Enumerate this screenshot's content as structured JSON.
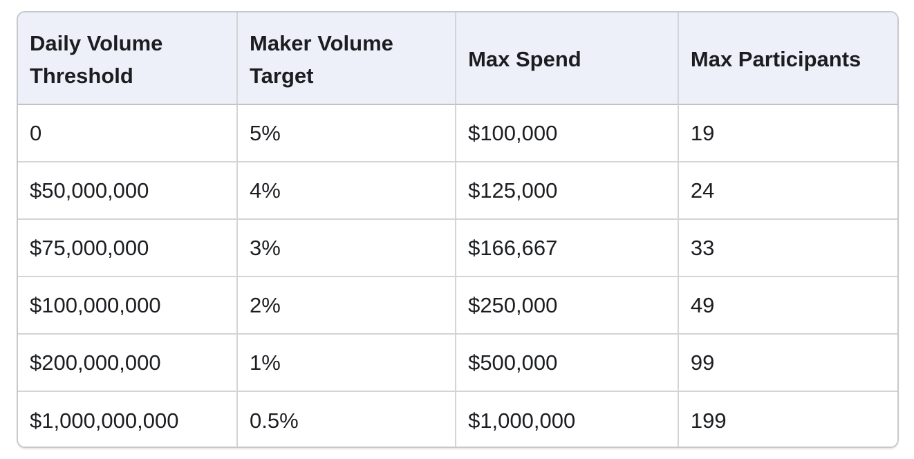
{
  "chart_data": {
    "type": "table",
    "columns": [
      "Daily Volume Threshold",
      "Maker Volume Target",
      "Max Spend",
      "Max Participants"
    ],
    "rows": [
      [
        "0",
        "5%",
        "$100,000",
        "19"
      ],
      [
        "$50,000,000",
        "4%",
        "$125,000",
        "24"
      ],
      [
        "$75,000,000",
        "3%",
        "$166,667",
        "33"
      ],
      [
        "$100,000,000",
        "2%",
        "$250,000",
        "49"
      ],
      [
        "$200,000,000",
        "1%",
        "$500,000",
        "99"
      ],
      [
        "$1,000,000,000",
        "0.5%",
        "$1,000,000",
        "199"
      ]
    ]
  },
  "colors": {
    "background": "#ffffff",
    "header_bg": "#eef0f9",
    "text": "#1b1d21",
    "inner_border": "#d4d4d6",
    "header_border": "#c2c2c6",
    "outer_border": "#c6c8cc"
  }
}
